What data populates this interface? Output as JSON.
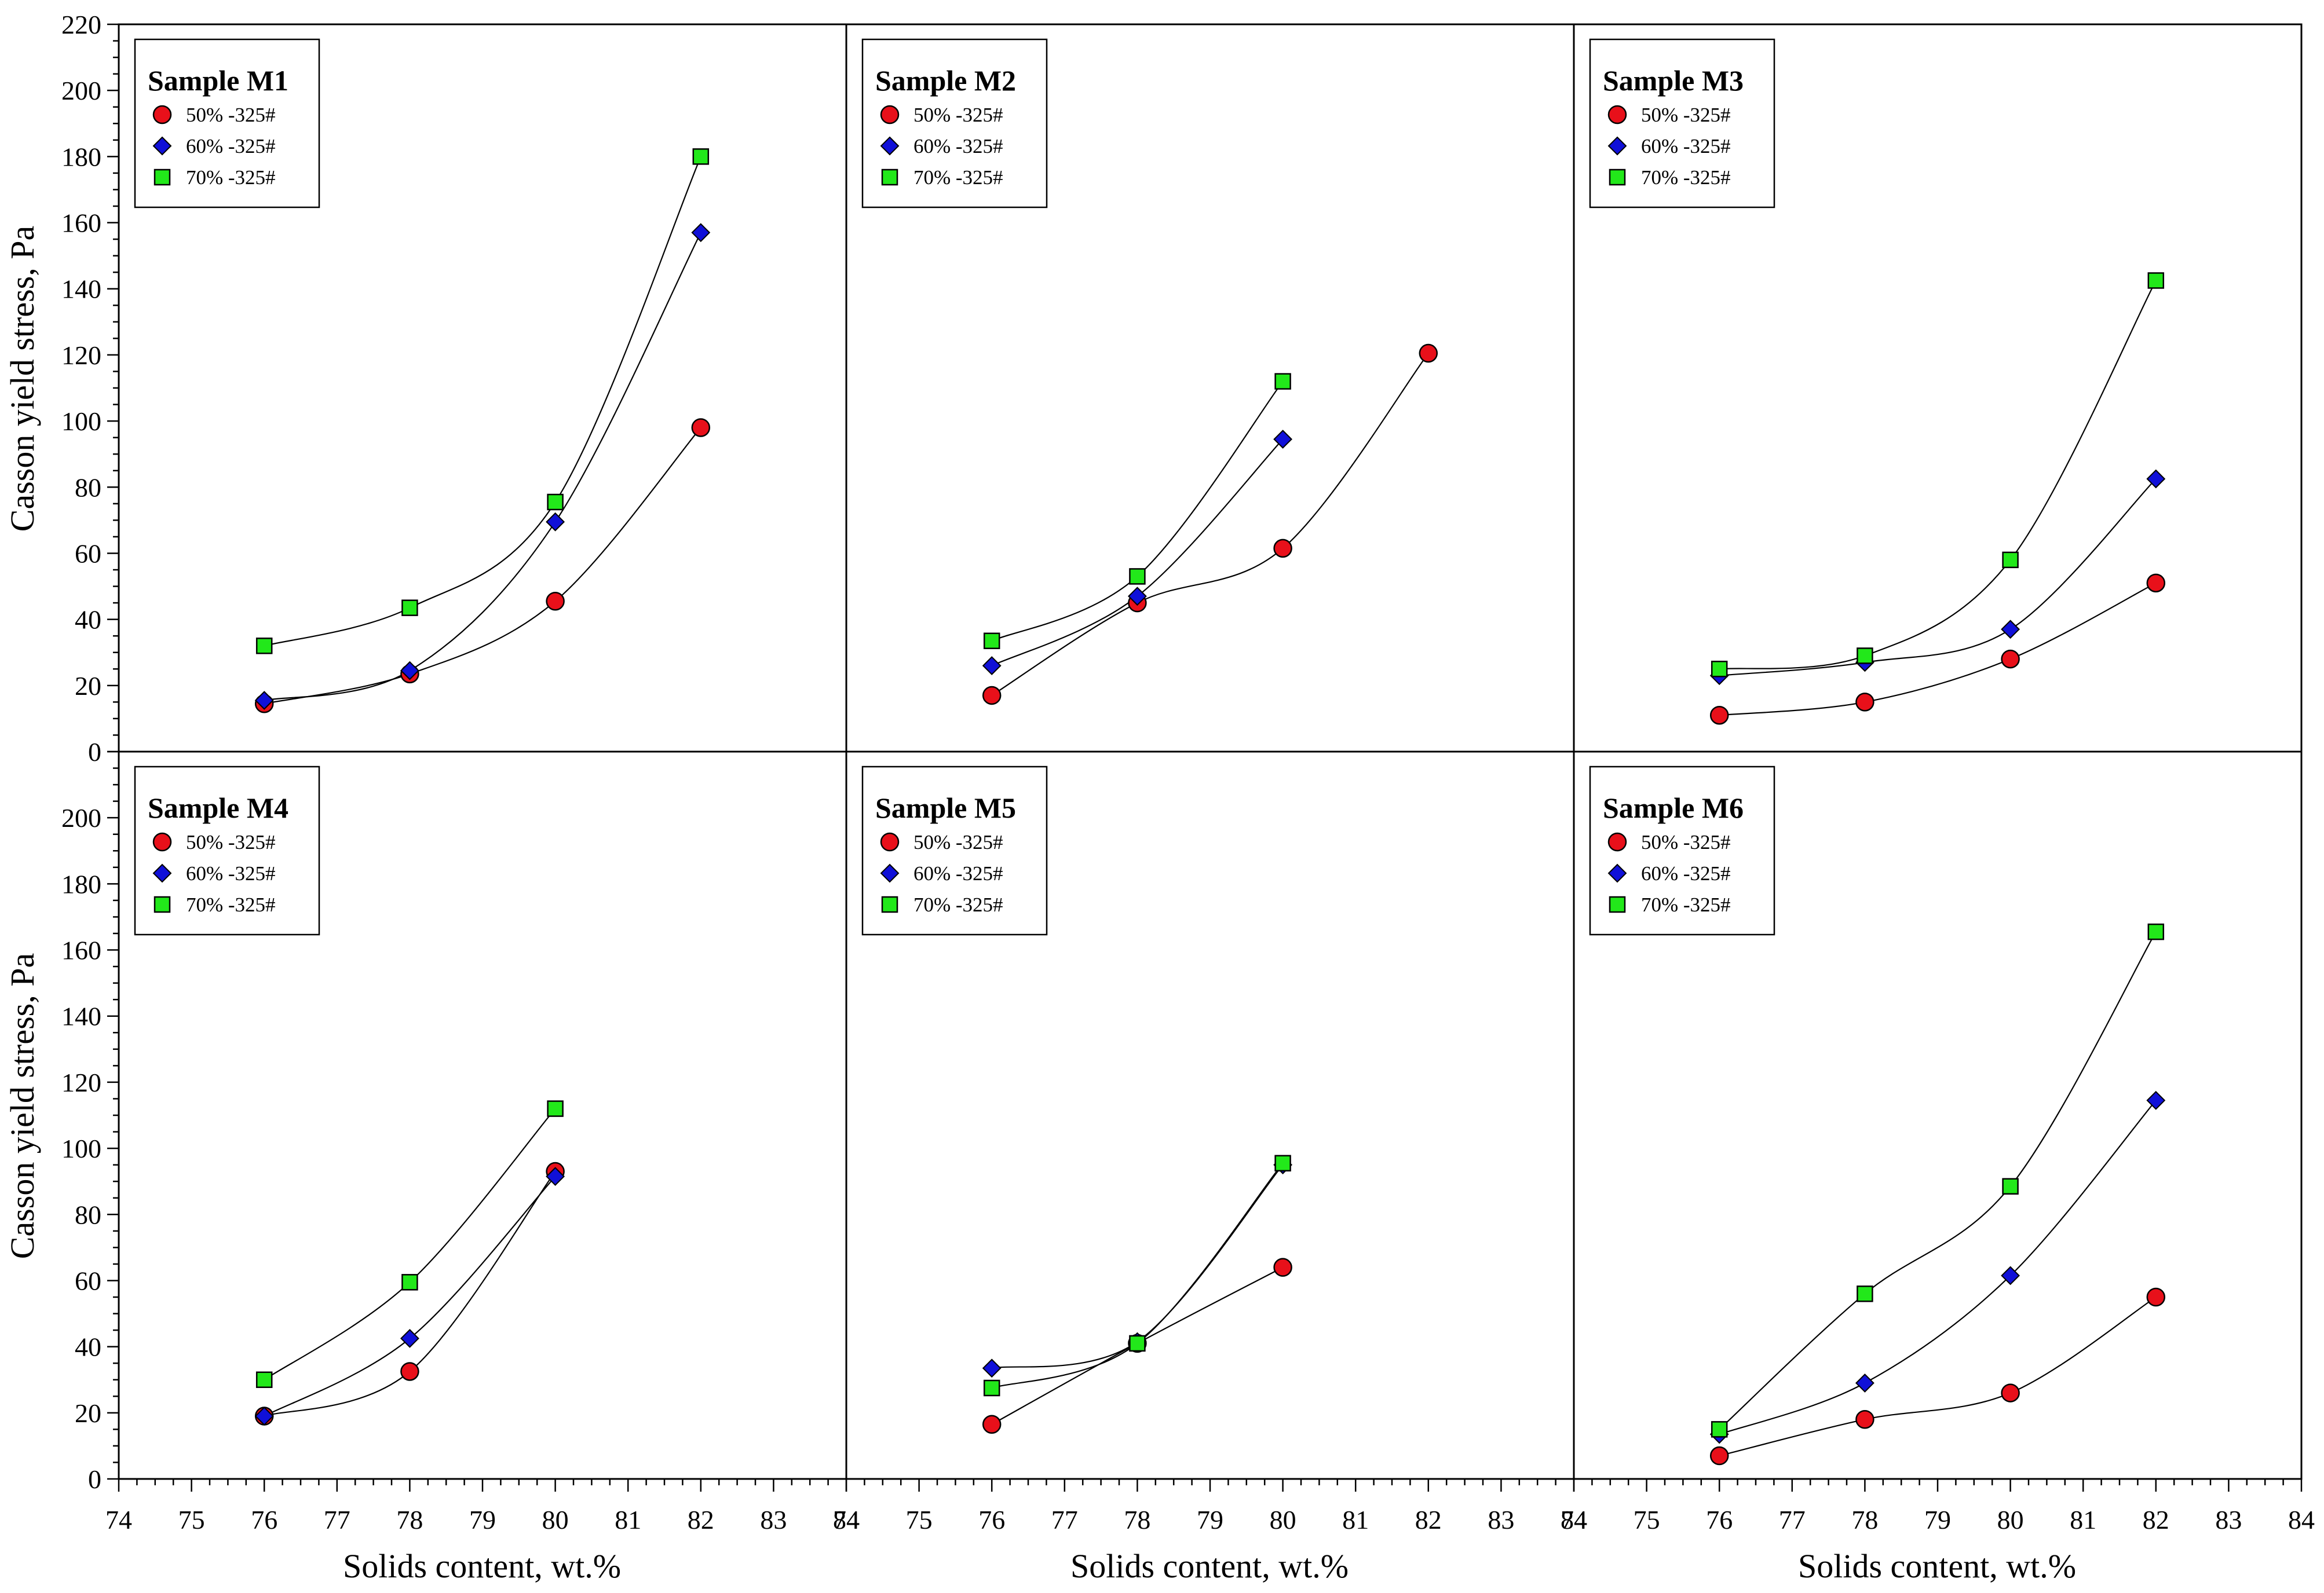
{
  "figure": {
    "ylabel": "Casson yield stress, Pa",
    "xlabel": "Solids content, wt.%"
  },
  "chart_data": [
    {
      "type": "scatter",
      "title": "Sample M1",
      "xlabel": "Solids content, wt.%",
      "ylabel": "Casson yield stress, Pa",
      "xlim": [
        74,
        84
      ],
      "ylim": [
        0,
        220
      ],
      "xticks": [
        "74",
        "75",
        "76",
        "77",
        "78",
        "79",
        "80",
        "81",
        "82",
        "83",
        "84"
      ],
      "yticks": [
        "0",
        "20",
        "40",
        "60",
        "80",
        "100",
        "120",
        "140",
        "160",
        "180",
        "200",
        "220"
      ],
      "series": [
        {
          "name": "50% -325#",
          "marker": "circle",
          "color": "#e8101a",
          "x": [
            76,
            78,
            80,
            82
          ],
          "y": [
            14.5,
            23.5,
            45.5,
            98
          ]
        },
        {
          "name": "60% -325#",
          "marker": "diamond",
          "color": "#1010d8",
          "x": [
            76,
            78,
            80,
            82
          ],
          "y": [
            15.5,
            24.5,
            69.5,
            157
          ]
        },
        {
          "name": "70% -325#",
          "marker": "square",
          "color": "#22e81a",
          "x": [
            76,
            78,
            80,
            82
          ],
          "y": [
            32,
            43.5,
            75.5,
            180
          ]
        }
      ]
    },
    {
      "type": "scatter",
      "title": "Sample M2",
      "xlabel": "Solids content, wt.%",
      "ylabel": "Casson yield stress, Pa",
      "xlim": [
        74,
        84
      ],
      "ylim": [
        0,
        220
      ],
      "xticks": [
        "74",
        "75",
        "76",
        "77",
        "78",
        "79",
        "80",
        "81",
        "82",
        "83",
        "84"
      ],
      "yticks": [
        "0",
        "20",
        "40",
        "60",
        "80",
        "100",
        "120",
        "140",
        "160",
        "180",
        "200",
        "220"
      ],
      "series": [
        {
          "name": "50% -325#",
          "marker": "circle",
          "color": "#e8101a",
          "x": [
            76,
            78,
            80,
            82
          ],
          "y": [
            17,
            45,
            61.5,
            120.5
          ]
        },
        {
          "name": "60% -325#",
          "marker": "diamond",
          "color": "#1010d8",
          "x": [
            76,
            78,
            80
          ],
          "y": [
            26,
            47,
            94.5
          ]
        },
        {
          "name": "70% -325#",
          "marker": "square",
          "color": "#22e81a",
          "x": [
            76,
            78,
            80
          ],
          "y": [
            33.5,
            53,
            112
          ]
        }
      ]
    },
    {
      "type": "scatter",
      "title": "Sample M3",
      "xlabel": "Solids content, wt.%",
      "ylabel": "Casson yield stress, Pa",
      "xlim": [
        74,
        84
      ],
      "ylim": [
        0,
        220
      ],
      "xticks": [
        "74",
        "75",
        "76",
        "77",
        "78",
        "79",
        "80",
        "81",
        "82",
        "83",
        "84"
      ],
      "yticks": [
        "0",
        "20",
        "40",
        "60",
        "80",
        "100",
        "120",
        "140",
        "160",
        "180",
        "200",
        "220"
      ],
      "series": [
        {
          "name": "50% -325#",
          "marker": "circle",
          "color": "#e8101a",
          "x": [
            76,
            78,
            80,
            82
          ],
          "y": [
            11,
            15,
            28,
            51
          ]
        },
        {
          "name": "60% -325#",
          "marker": "diamond",
          "color": "#1010d8",
          "x": [
            76,
            78,
            80,
            82
          ],
          "y": [
            23,
            27,
            37,
            82.5
          ]
        },
        {
          "name": "70% -325#",
          "marker": "square",
          "color": "#22e81a",
          "x": [
            76,
            78,
            80,
            82
          ],
          "y": [
            25,
            29,
            58,
            142.5
          ]
        }
      ]
    },
    {
      "type": "scatter",
      "title": "Sample M4",
      "xlabel": "Solids content, wt.%",
      "ylabel": "Casson yield stress, Pa",
      "xlim": [
        74,
        84
      ],
      "ylim": [
        0,
        220
      ],
      "xticks": [
        "74",
        "75",
        "76",
        "77",
        "78",
        "79",
        "80",
        "81",
        "82",
        "83",
        "84"
      ],
      "yticks": [
        "0",
        "20",
        "40",
        "60",
        "80",
        "100",
        "120",
        "140",
        "160",
        "180",
        "200",
        "220"
      ],
      "series": [
        {
          "name": "50% -325#",
          "marker": "circle",
          "color": "#e8101a",
          "x": [
            76,
            78,
            80
          ],
          "y": [
            19,
            32.5,
            93
          ]
        },
        {
          "name": "60% -325#",
          "marker": "diamond",
          "color": "#1010d8",
          "x": [
            76,
            78,
            80
          ],
          "y": [
            19,
            42.5,
            91.5
          ]
        },
        {
          "name": "70% -325#",
          "marker": "square",
          "color": "#22e81a",
          "x": [
            76,
            78,
            80
          ],
          "y": [
            30,
            59.5,
            112
          ]
        }
      ]
    },
    {
      "type": "scatter",
      "title": "Sample M5",
      "xlabel": "Solids content, wt.%",
      "ylabel": "Casson yield stress, Pa",
      "xlim": [
        74,
        84
      ],
      "ylim": [
        0,
        220
      ],
      "xticks": [
        "74",
        "75",
        "76",
        "77",
        "78",
        "79",
        "80",
        "81",
        "82",
        "83",
        "84"
      ],
      "yticks": [
        "0",
        "20",
        "40",
        "60",
        "80",
        "100",
        "120",
        "140",
        "160",
        "180",
        "200",
        "220"
      ],
      "series": [
        {
          "name": "50% -325#",
          "marker": "circle",
          "color": "#e8101a",
          "x": [
            76,
            78,
            80
          ],
          "y": [
            16.5,
            41,
            64
          ]
        },
        {
          "name": "60% -325#",
          "marker": "diamond",
          "color": "#1010d8",
          "x": [
            76,
            78,
            80
          ],
          "y": [
            33.5,
            41.5,
            95
          ]
        },
        {
          "name": "70% -325#",
          "marker": "square",
          "color": "#22e81a",
          "x": [
            76,
            78,
            80
          ],
          "y": [
            27.5,
            41,
            95.5
          ]
        }
      ]
    },
    {
      "type": "scatter",
      "title": "Sample M6",
      "xlabel": "Solids content, wt.%",
      "ylabel": "Casson yield stress, Pa",
      "xlim": [
        74,
        84
      ],
      "ylim": [
        0,
        220
      ],
      "xticks": [
        "74",
        "75",
        "76",
        "77",
        "78",
        "79",
        "80",
        "81",
        "82",
        "83",
        "84"
      ],
      "yticks": [
        "0",
        "20",
        "40",
        "60",
        "80",
        "100",
        "120",
        "140",
        "160",
        "180",
        "200",
        "220"
      ],
      "series": [
        {
          "name": "50% -325#",
          "marker": "circle",
          "color": "#e8101a",
          "x": [
            76,
            78,
            80,
            82
          ],
          "y": [
            7,
            18,
            26,
            55
          ]
        },
        {
          "name": "60% -325#",
          "marker": "diamond",
          "color": "#1010d8",
          "x": [
            76,
            78,
            80,
            82
          ],
          "y": [
            13.5,
            29,
            61.5,
            114.5
          ]
        },
        {
          "name": "70% -325#",
          "marker": "square",
          "color": "#22e81a",
          "x": [
            76,
            78,
            80,
            82
          ],
          "y": [
            15,
            56,
            88.5,
            165.5
          ]
        }
      ]
    }
  ]
}
